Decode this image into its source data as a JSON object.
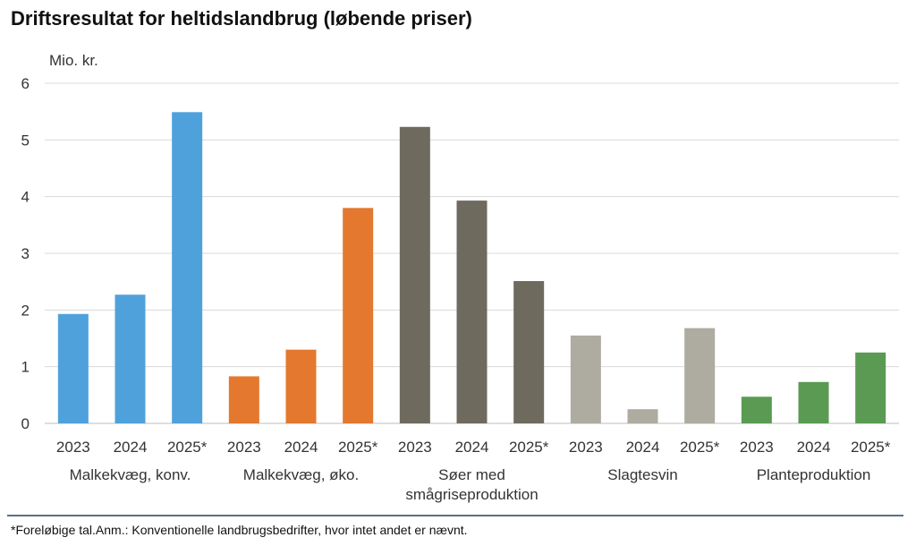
{
  "chart_data": {
    "type": "bar",
    "title": "Driftsresultat for heltidslandbrug (løbende priser)",
    "unit_label": "Mio. kr.",
    "ylim": [
      0,
      6
    ],
    "yticks": [
      0,
      1,
      2,
      3,
      4,
      5,
      6
    ],
    "grid": true,
    "groups": [
      {
        "name": "Malkekvæg, konv.",
        "name_lines": [
          "Malkekvæg, konv."
        ],
        "color": "#4fa1dc",
        "bars": [
          {
            "label": "2023",
            "value": 1.93
          },
          {
            "label": "2024",
            "value": 2.27
          },
          {
            "label": "2025*",
            "value": 5.49
          }
        ]
      },
      {
        "name": "Malkekvæg, øko.",
        "name_lines": [
          "Malkekvæg, øko."
        ],
        "color": "#e4782f",
        "bars": [
          {
            "label": "2023",
            "value": 0.83
          },
          {
            "label": "2024",
            "value": 1.3
          },
          {
            "label": "2025*",
            "value": 3.8
          }
        ]
      },
      {
        "name": "Søer med smågriseproduktion",
        "name_lines": [
          "Søer med",
          "smågriseproduktion"
        ],
        "color": "#6e6b5e",
        "bars": [
          {
            "label": "2023",
            "value": 5.23
          },
          {
            "label": "2024",
            "value": 3.93
          },
          {
            "label": "2025*",
            "value": 2.51
          }
        ]
      },
      {
        "name": "Slagtesvin",
        "name_lines": [
          "Slagtesvin"
        ],
        "color": "#aeaba0",
        "bars": [
          {
            "label": "2023",
            "value": 1.55
          },
          {
            "label": "2024",
            "value": 0.25
          },
          {
            "label": "2025*",
            "value": 1.68
          }
        ]
      },
      {
        "name": "Planteproduktion",
        "name_lines": [
          "Planteproduktion"
        ],
        "color": "#5a9a52",
        "bars": [
          {
            "label": "2023",
            "value": 0.47
          },
          {
            "label": "2024",
            "value": 0.73
          },
          {
            "label": "2025*",
            "value": 1.25
          }
        ]
      }
    ]
  },
  "footnote": "*Foreløbige tal.Anm.: Konventionelle landbrugsbedrifter, hvor intet andet er nævnt."
}
